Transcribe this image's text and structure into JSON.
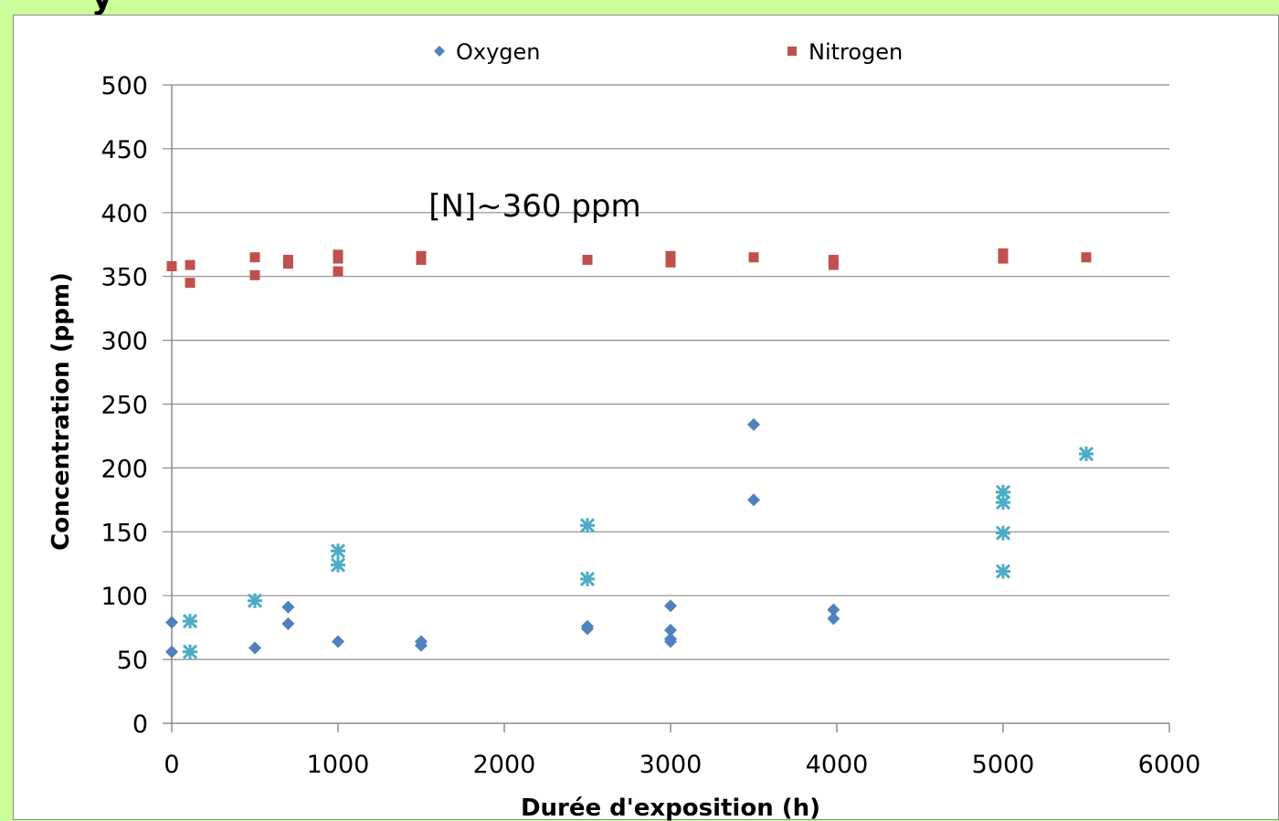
{
  "header_fragment": "y",
  "chart_data": {
    "type": "scatter",
    "title": "",
    "xlabel": "Durée d'exposition (h)",
    "ylabel": "Concentration (ppm)",
    "xlim": [
      0,
      6000
    ],
    "ylim": [
      0,
      500
    ],
    "xticks": [
      "0",
      "1000",
      "2000",
      "3000",
      "4000",
      "5000",
      "6000"
    ],
    "yticks": [
      "0",
      "50",
      "100",
      "150",
      "200",
      "250",
      "300",
      "350",
      "400",
      "450",
      "500"
    ],
    "grid": "horizontal",
    "legend_position": "top",
    "annotation": "[N]~360 ppm",
    "annotation_position": [
      1600,
      400
    ],
    "series": [
      {
        "name": "Oxygen",
        "marker": "diamond",
        "color": "#4f81bd",
        "points": [
          [
            0,
            79
          ],
          [
            0,
            56
          ],
          [
            500,
            59
          ],
          [
            700,
            91
          ],
          [
            700,
            78
          ],
          [
            1000,
            64
          ],
          [
            1500,
            64
          ],
          [
            1500,
            61
          ],
          [
            2500,
            76
          ],
          [
            2500,
            74
          ],
          [
            3000,
            92
          ],
          [
            3000,
            73
          ],
          [
            3000,
            66
          ],
          [
            3000,
            64
          ],
          [
            3500,
            234
          ],
          [
            3500,
            175
          ],
          [
            3980,
            89
          ],
          [
            3980,
            82
          ]
        ]
      },
      {
        "name": "Nitrogen",
        "marker": "square",
        "color": "#c0504d",
        "points": [
          [
            0,
            358
          ],
          [
            110,
            359
          ],
          [
            110,
            345
          ],
          [
            500,
            365
          ],
          [
            500,
            351
          ],
          [
            700,
            363
          ],
          [
            700,
            360
          ],
          [
            1000,
            367
          ],
          [
            1000,
            364
          ],
          [
            1000,
            354
          ],
          [
            1500,
            366
          ],
          [
            1500,
            363
          ],
          [
            2500,
            363
          ],
          [
            3000,
            366
          ],
          [
            3000,
            361
          ],
          [
            3500,
            365
          ],
          [
            3980,
            363
          ],
          [
            3980,
            359
          ],
          [
            5000,
            368
          ],
          [
            5000,
            364
          ],
          [
            5500,
            365
          ]
        ]
      },
      {
        "marker": "star",
        "color": "#4bacc6",
        "points": [
          [
            110,
            80
          ],
          [
            110,
            56
          ],
          [
            500,
            96
          ],
          [
            1000,
            135
          ],
          [
            1000,
            124
          ],
          [
            2500,
            155
          ],
          [
            2500,
            113
          ],
          [
            5000,
            181
          ],
          [
            5000,
            173
          ],
          [
            5000,
            149
          ],
          [
            5000,
            119
          ],
          [
            5500,
            211
          ]
        ]
      }
    ]
  }
}
